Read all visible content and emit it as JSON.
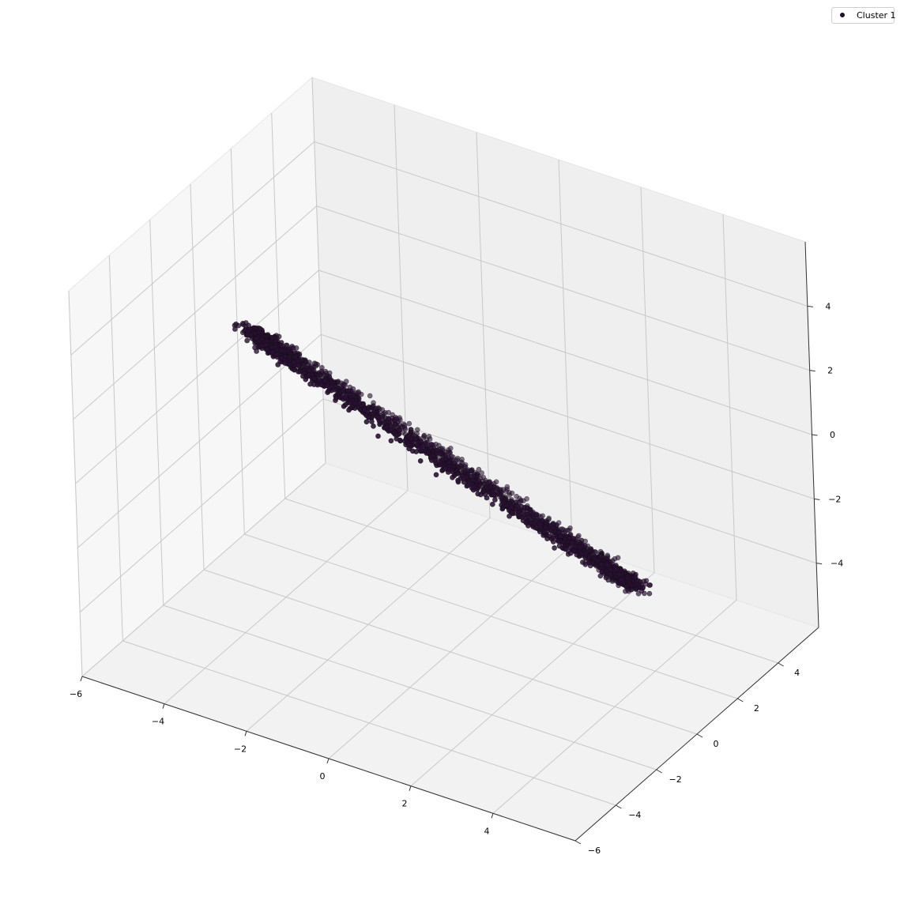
{
  "chart_data": {
    "type": "scatter",
    "title": "",
    "xlabel": "",
    "ylabel": "",
    "zlabel": "",
    "projection": "3d",
    "xlim": [
      -6,
      6
    ],
    "ylim": [
      -6,
      6
    ],
    "zlim": [
      -6,
      6
    ],
    "x_ticks": [
      "-6",
      "-4",
      "-2",
      "0",
      "2",
      "4"
    ],
    "y_ticks": [
      "-6",
      "-4",
      "-2",
      "0",
      "2",
      "4"
    ],
    "z_ticks": [
      "-4",
      "-2",
      "0",
      "2",
      "4"
    ],
    "grid": true,
    "legend": {
      "position": "top-right",
      "entries": [
        "Cluster 1"
      ]
    },
    "series": [
      {
        "name": "Cluster 1",
        "color": "#2b0f36",
        "edge_color": "#111111",
        "shape": "tilted-ring",
        "ring_radius": 5,
        "point_count": 2000
      }
    ]
  }
}
